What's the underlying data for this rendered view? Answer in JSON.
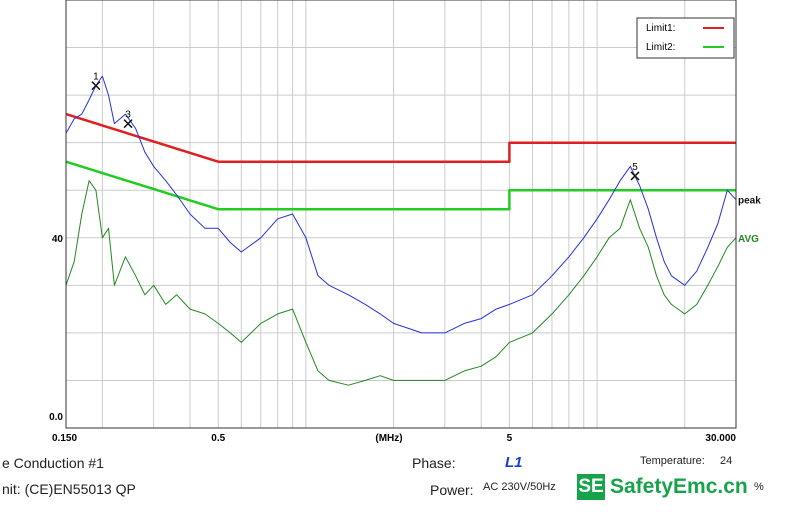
{
  "chart_data": {
    "type": "line",
    "x_scale": "log",
    "xlim": [
      0.15,
      30
    ],
    "ylim": [
      0,
      90
    ],
    "x_unit": "(MHz)",
    "y_tick_labels": [
      "0.0",
      "40"
    ],
    "x_tick_labels": [
      "0.150",
      "0.5",
      "5",
      "30.000"
    ],
    "grid": true,
    "legend": {
      "position": "top-right",
      "entries": [
        {
          "label": "Limit1:",
          "color": "#e02020"
        },
        {
          "label": "Limit2:",
          "color": "#22cc22"
        }
      ]
    },
    "series": [
      {
        "name": "Limit1",
        "color": "#e02020",
        "x": [
          0.15,
          0.5,
          0.5,
          5,
          5,
          30
        ],
        "y": [
          66,
          56,
          56,
          56,
          60,
          60
        ]
      },
      {
        "name": "Limit2",
        "color": "#22cc22",
        "x": [
          0.15,
          0.5,
          0.5,
          5,
          5,
          30
        ],
        "y": [
          56,
          46,
          46,
          46,
          50,
          50
        ]
      },
      {
        "name": "peak",
        "color": "#2233dd",
        "x": [
          0.15,
          0.16,
          0.17,
          0.18,
          0.19,
          0.2,
          0.21,
          0.22,
          0.24,
          0.26,
          0.28,
          0.3,
          0.33,
          0.36,
          0.4,
          0.45,
          0.5,
          0.55,
          0.6,
          0.7,
          0.8,
          0.9,
          1.0,
          1.1,
          1.2,
          1.4,
          1.6,
          1.8,
          2.0,
          2.5,
          3.0,
          3.5,
          4.0,
          4.5,
          5.0,
          6.0,
          7.0,
          8.0,
          9.0,
          10.0,
          11.0,
          12.0,
          13.0,
          14.0,
          15.0,
          16.0,
          17.0,
          18.0,
          20.0,
          22.0,
          24.0,
          26.0,
          28.0,
          30.0
        ],
        "y": [
          62,
          65,
          66,
          69,
          72,
          74,
          70,
          64,
          66,
          63,
          58,
          55,
          52,
          49,
          45,
          42,
          42,
          39,
          37,
          40,
          44,
          45,
          40,
          32,
          30,
          28,
          26,
          24,
          22,
          20,
          20,
          22,
          23,
          25,
          26,
          28,
          32,
          36,
          40,
          44,
          48,
          52,
          55,
          51,
          46,
          40,
          35,
          32,
          30,
          33,
          38,
          43,
          50,
          48
        ]
      },
      {
        "name": "AVG",
        "color": "#228822",
        "x": [
          0.15,
          0.16,
          0.17,
          0.18,
          0.19,
          0.2,
          0.21,
          0.22,
          0.24,
          0.26,
          0.28,
          0.3,
          0.33,
          0.36,
          0.4,
          0.45,
          0.5,
          0.55,
          0.6,
          0.7,
          0.8,
          0.9,
          1.0,
          1.1,
          1.2,
          1.4,
          1.6,
          1.8,
          2.0,
          2.5,
          3.0,
          3.5,
          4.0,
          4.5,
          5.0,
          6.0,
          7.0,
          8.0,
          9.0,
          10.0,
          11.0,
          12.0,
          13.0,
          14.0,
          15.0,
          16.0,
          17.0,
          18.0,
          20.0,
          22.0,
          24.0,
          26.0,
          28.0,
          30.0
        ],
        "y": [
          30,
          35,
          45,
          52,
          50,
          40,
          42,
          30,
          36,
          32,
          28,
          30,
          26,
          28,
          25,
          24,
          22,
          20,
          18,
          22,
          24,
          25,
          18,
          12,
          10,
          9,
          10,
          11,
          10,
          10,
          10,
          12,
          13,
          15,
          18,
          20,
          24,
          28,
          32,
          36,
          40,
          42,
          48,
          42,
          38,
          32,
          28,
          26,
          24,
          26,
          30,
          34,
          38,
          40
        ]
      }
    ],
    "markers": [
      {
        "label": "1",
        "x": 0.19,
        "y": 72
      },
      {
        "label": "3",
        "x": 0.245,
        "y": 64
      },
      {
        "label": "5",
        "x": 13.5,
        "y": 53
      }
    ],
    "series_labels": [
      {
        "text": "peak",
        "series": "peak"
      },
      {
        "text": "AVG",
        "series": "AVG"
      }
    ]
  },
  "footer": {
    "title": "e  Conduction #1",
    "limit": "nit: (CE)EN55013  QP",
    "phase_label": "Phase:",
    "phase_value": "L1",
    "power_label": "Power:",
    "power_value": "AC 230V/50Hz",
    "temperature_label": "Temperature:",
    "temperature_value": "24",
    "humidity_value": "%"
  },
  "watermark": {
    "badge": "SE",
    "text": "SafetyEmc.cn",
    "color": "#17a34a"
  }
}
